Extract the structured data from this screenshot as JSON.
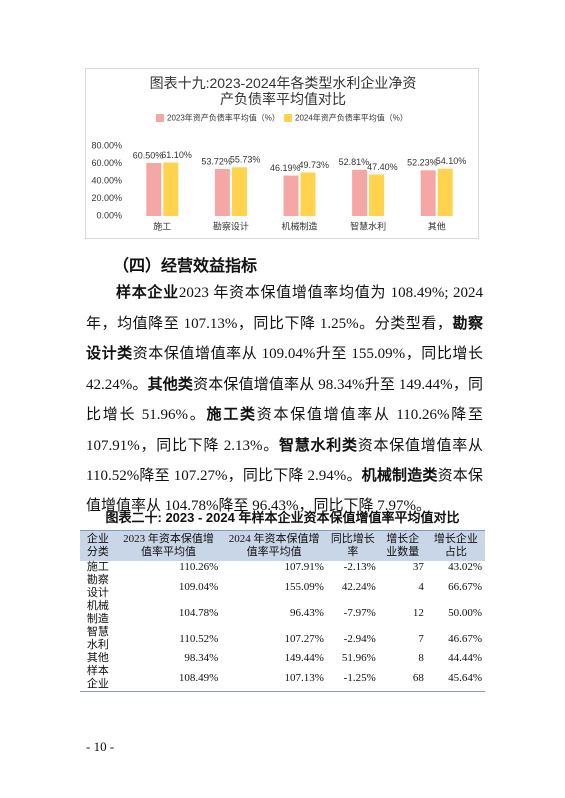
{
  "chart_data": {
    "type": "bar",
    "title": "图表十九:2023-2024年各类型水利企业净资产负债率平均值对比",
    "categories": [
      "施工",
      "勘察设计",
      "机械制造",
      "智慧水利",
      "其他"
    ],
    "series": [
      {
        "name": "2023年资产负债率平均值（%）",
        "color": "#f4a7a4",
        "values": [
          60.5,
          53.72,
          46.19,
          52.81,
          52.23
        ],
        "value_labels": [
          "60.50%",
          "53.72%",
          "46.19%",
          "52.81%",
          "52.23%"
        ]
      },
      {
        "name": "2024年资产负债率平均值（%）",
        "color": "#ffd34e",
        "values": [
          61.1,
          55.73,
          49.73,
          47.4,
          54.1
        ],
        "value_labels": [
          "61.10%",
          "55.73%",
          "49.73%",
          "47.40%",
          "54.10%"
        ]
      }
    ],
    "ylim": [
      0,
      80
    ],
    "yticks": [
      {
        "value": 0,
        "label": "0.00%"
      },
      {
        "value": 20,
        "label": "20.00%"
      },
      {
        "value": 40,
        "label": "40.00%"
      },
      {
        "value": 60,
        "label": "60.00%"
      },
      {
        "value": 80,
        "label": "80.00%"
      }
    ],
    "grid": false
  },
  "section": {
    "heading": "（四）经营效益指标",
    "paragraph": {
      "runs": [
        {
          "text": "样本企业",
          "bold": true
        },
        {
          "text": "2023 年资本保值增值率均值为 108.49%; 2024 年，均值降至 107.13%，同比下降 1.25%。分类型看，",
          "bold": false
        },
        {
          "text": "勘察设计类",
          "bold": true
        },
        {
          "text": "资本保值增值率从 109.04%升至 155.09%，同比增长 42.24%。",
          "bold": false
        },
        {
          "text": "其他类",
          "bold": true
        },
        {
          "text": "资本保值增值率从 98.34%升至 149.44%，同比增长 51.96%。",
          "bold": false
        },
        {
          "text": "施工类",
          "bold": true
        },
        {
          "text": "资本保值增值率从 110.26%降至 107.91%，同比下降 2.13%。",
          "bold": false
        },
        {
          "text": "智慧水利类",
          "bold": true
        },
        {
          "text": "资本保值增值率从 110.52%降至 107.27%，同比下降 2.94%。",
          "bold": false
        },
        {
          "text": "机械制造类",
          "bold": true
        },
        {
          "text": "资本保值增值率从 104.78%降至 96.43%，同比下降 7.97%。",
          "bold": false
        }
      ]
    }
  },
  "table": {
    "title": "图表二十: 2023 - 2024 年样本企业资本保值增值率平均值对比",
    "header": [
      "企业分类",
      "2023 年资本保值增值率平均值",
      "2024 年资本保值增值率平均值",
      "同比增长率",
      "增长企业数量",
      "增长企业占比"
    ],
    "rows": [
      [
        "施工",
        "110.26%",
        "107.91%",
        "-2.13%",
        "37",
        "43.02%"
      ],
      [
        "勘察设计",
        "109.04%",
        "155.09%",
        "42.24%",
        "4",
        "66.67%"
      ],
      [
        "机械制造",
        "104.78%",
        "96.43%",
        "-7.97%",
        "12",
        "50.00%"
      ],
      [
        "智慧水利",
        "110.52%",
        "107.27%",
        "-2.94%",
        "7",
        "46.67%"
      ],
      [
        "其他",
        "98.34%",
        "149.44%",
        "51.96%",
        "8",
        "44.44%"
      ],
      [
        "样本企业",
        "108.49%",
        "107.13%",
        "-1.25%",
        "68",
        "45.64%"
      ]
    ]
  },
  "footer": {
    "page_number": "- 10 -"
  }
}
